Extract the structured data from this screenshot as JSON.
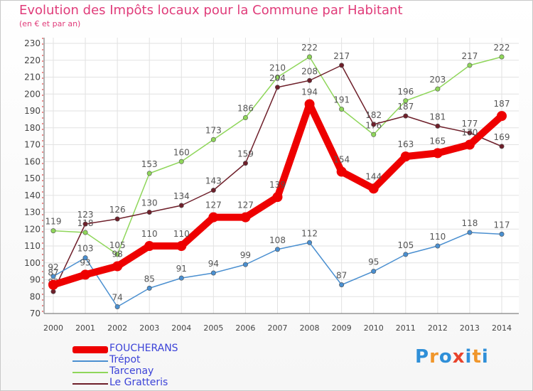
{
  "title": "Evolution des Impôts locaux pour la Commune par Habitant",
  "subtitle": "(en € et par an)",
  "logo": {
    "letters": [
      "P",
      "r",
      "o",
      "x",
      "i",
      "t",
      "i"
    ],
    "colors": [
      "#2f8fd8",
      "#f0962b",
      "#2f8fd8",
      "#e8432b",
      "#2f8fd8",
      "#f0962b",
      "#2f8fd8"
    ]
  },
  "chart_data": {
    "type": "line",
    "title": "Evolution des Impôts locaux pour la Commune par Habitant",
    "subtitle": "(en € et par an)",
    "x": [
      "2000",
      "2001",
      "2002",
      "2003",
      "2004",
      "2005",
      "2006",
      "2007",
      "2008",
      "2009",
      "2010",
      "2011",
      "2012",
      "2013",
      "2014"
    ],
    "ylim": [
      70,
      230
    ],
    "yticks": [
      70,
      80,
      90,
      100,
      110,
      120,
      130,
      140,
      150,
      160,
      170,
      180,
      190,
      200,
      210,
      220,
      230
    ],
    "grid": true,
    "legend_position": "bottom-left",
    "series": [
      {
        "name": "Tarcenay",
        "color": "#8fd65a",
        "labels": [
          119,
          118,
          105,
          153,
          160,
          173,
          186,
          210,
          222,
          191,
          176,
          196,
          203,
          217,
          222
        ],
        "values": [
          119,
          118,
          105,
          153,
          160,
          173,
          186,
          210,
          222,
          191,
          176,
          196,
          203,
          217,
          222
        ]
      },
      {
        "name": "Le Gratteris",
        "color": "#6e1f2a",
        "labels": [
          83,
          123,
          126,
          130,
          134,
          143,
          159,
          204,
          208,
          217,
          182,
          187,
          181,
          177,
          169
        ],
        "values": [
          83,
          123,
          126,
          130,
          134,
          143,
          159,
          204,
          208,
          217,
          182,
          187,
          181,
          177,
          169
        ]
      },
      {
        "name": "Trépot",
        "color": "#4a8fd0",
        "labels": [
          92,
          103,
          74,
          85,
          91,
          94,
          99,
          108,
          112,
          87,
          95,
          105,
          110,
          118,
          117
        ],
        "values": [
          92,
          103,
          74,
          85,
          91,
          94,
          99,
          108,
          112,
          87,
          95,
          105,
          110,
          118,
          117
        ]
      },
      {
        "name": "FOUCHERANS",
        "color": "#ee0000",
        "labels": [
          87,
          93,
          98,
          110,
          110,
          127,
          127,
          139,
          194,
          154,
          144,
          163,
          165,
          170,
          187
        ],
        "values": [
          87,
          93,
          98,
          110,
          110,
          127,
          127,
          139,
          194,
          154,
          144,
          163,
          165,
          170,
          187
        ]
      }
    ]
  },
  "legend": [
    {
      "name": "FOUCHERANS",
      "color": "#ee0000",
      "width": 10
    },
    {
      "name": "Trépot",
      "color": "#4a8fd0",
      "width": 2
    },
    {
      "name": "Tarcenay",
      "color": "#8fd65a",
      "width": 2
    },
    {
      "name": "Le Gratteris",
      "color": "#6e1f2a",
      "width": 2
    }
  ]
}
